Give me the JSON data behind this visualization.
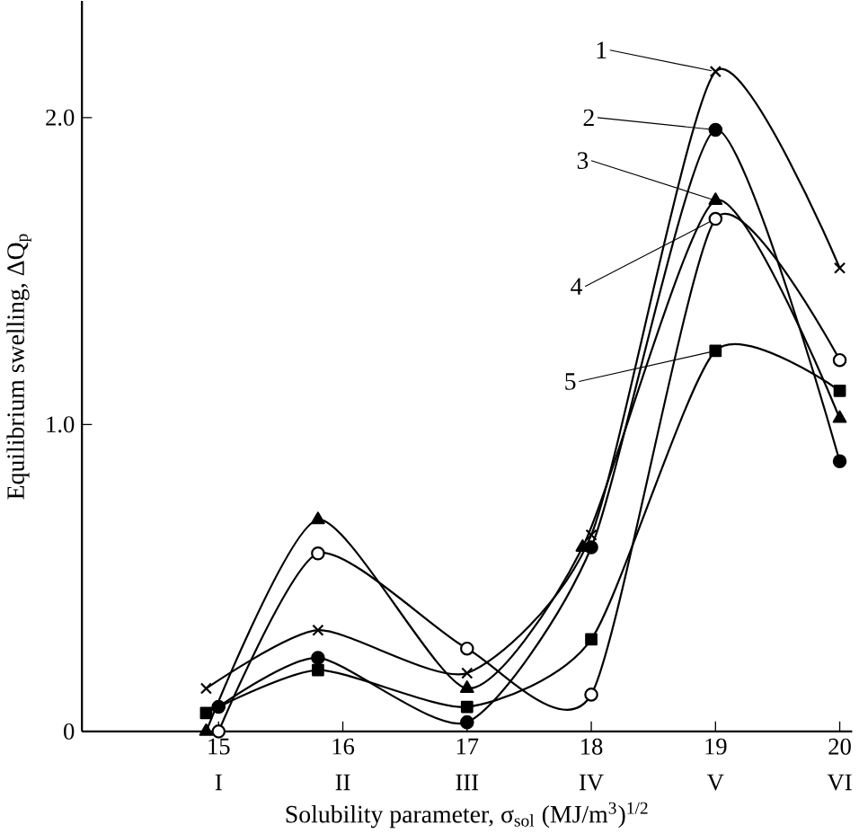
{
  "chart_data": {
    "type": "line",
    "xlabel": "Solubility parameter, σ$_{sol}$ (MJ/m$^{3}$)$^{1/2}$",
    "ylabel": "Equilibrium swelling, ΔQ$_{p}$",
    "xlim": [
      13.9,
      20.1
    ],
    "ylim": [
      0,
      2.38
    ],
    "xticks": [
      15,
      16,
      17,
      18,
      19,
      20
    ],
    "yticks": [
      0,
      {
        "value": 1.0,
        "label": "1.0"
      },
      {
        "value": 2.0,
        "label": "2.0"
      }
    ],
    "annotations": [
      "I",
      "II",
      "III",
      "IV",
      "V",
      "VI"
    ],
    "grid": false,
    "legend": "top right",
    "line_style": "solid",
    "series": [
      {
        "name": "1",
        "color": "#000000",
        "marker": "cross",
        "x": [
          14.9,
          15.8,
          17,
          18,
          19,
          20
        ],
        "values": [
          0.14,
          0.33,
          0.19,
          0.64,
          2.15,
          1.51
        ]
      },
      {
        "name": "2",
        "color": "#000000",
        "marker": "circle",
        "x": [
          15,
          15.8,
          17,
          18,
          19,
          20
        ],
        "values": [
          0.08,
          0.24,
          0.03,
          0.6,
          1.96,
          0.88
        ]
      },
      {
        "name": "3",
        "color": "#000000",
        "marker": "triangle",
        "x": [
          14.9,
          15.8,
          17,
          17.93,
          19,
          20
        ],
        "values": [
          0.0,
          0.69,
          0.14,
          0.6,
          1.73,
          1.02
        ]
      },
      {
        "name": "4",
        "color": "#000000",
        "marker": "circle",
        "x": [
          15,
          15.8,
          17,
          18,
          19,
          20
        ],
        "values": [
          0.0,
          0.58,
          0.27,
          0.12,
          1.67,
          1.21
        ]
      },
      {
        "name": "5",
        "color": "#000000",
        "marker": "square",
        "x": [
          14.9,
          15.8,
          17,
          18,
          19,
          20
        ],
        "values": [
          0.06,
          0.2,
          0.08,
          0.3,
          1.24,
          1.11
        ]
      }
    ]
  }
}
